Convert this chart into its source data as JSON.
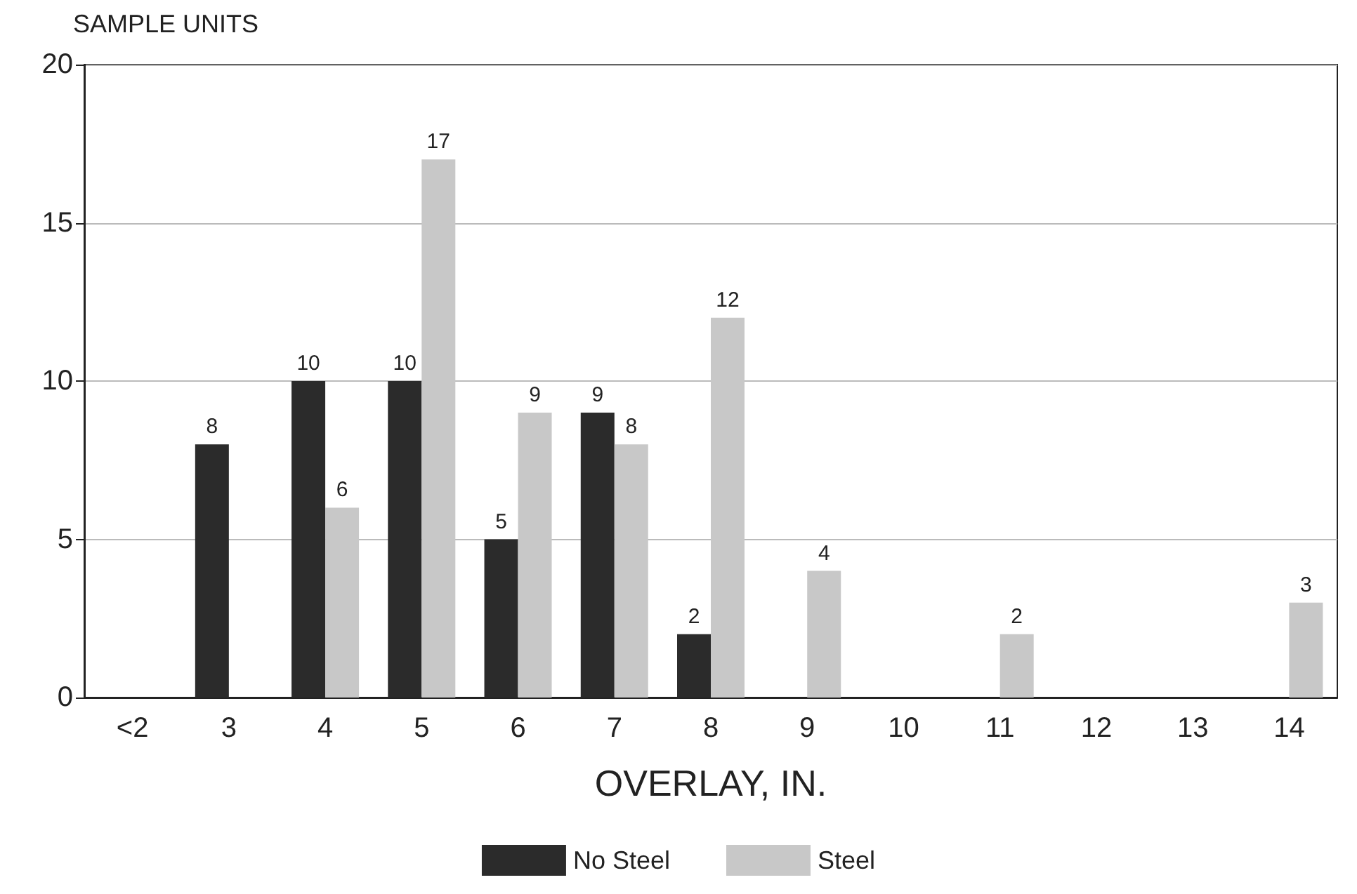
{
  "chart_data": {
    "type": "bar",
    "xlabel": "OVERLAY, IN.",
    "ylabel": "SAMPLE UNITS",
    "categories": [
      "<2",
      "3",
      "4",
      "5",
      "6",
      "7",
      "8",
      "9",
      "10",
      "11",
      "12",
      "13",
      "14"
    ],
    "series": [
      {
        "name": "No Steel",
        "color": "#2b2b2b",
        "values": [
          0,
          8,
          10,
          10,
          5,
          9,
          2,
          0,
          0,
          0,
          0,
          0,
          0
        ],
        "value_labels": [
          null,
          "8",
          "10",
          "10",
          "5",
          "9",
          "2",
          null,
          null,
          null,
          null,
          null,
          null
        ]
      },
      {
        "name": "Steel",
        "color": "#c8c8c8",
        "values": [
          0,
          0,
          6,
          17,
          9,
          8,
          12,
          4,
          0,
          2,
          0,
          0,
          3
        ],
        "value_labels": [
          null,
          null,
          "6",
          "17",
          "9",
          "8",
          "12",
          "4",
          null,
          "2",
          null,
          null,
          "3"
        ]
      }
    ],
    "ylim": [
      0,
      20
    ],
    "yticks": [
      0,
      5,
      10,
      15,
      20
    ],
    "grid": "y",
    "legend": "bottom"
  }
}
